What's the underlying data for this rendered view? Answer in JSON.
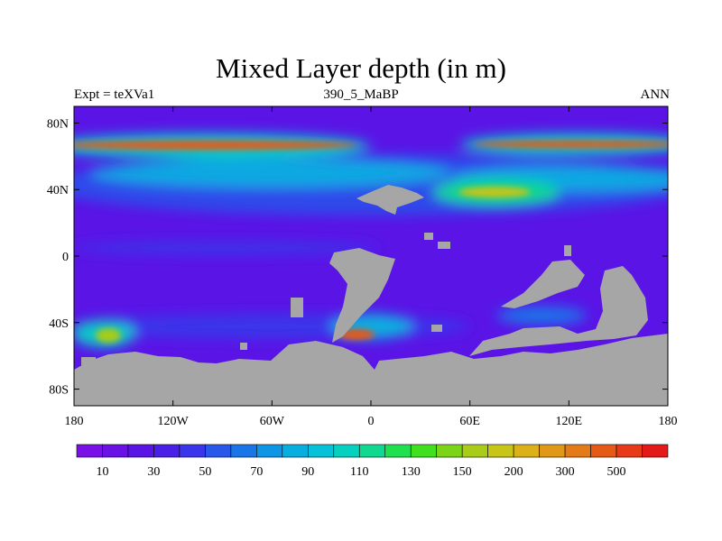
{
  "title": "Mixed Layer depth (in m)",
  "subtitle_left": "Expt = teXVa1",
  "subtitle_center": "390_5_MaBP",
  "subtitle_right": "ANN",
  "chart_data": {
    "type": "heatmap",
    "x_axis": {
      "ticks": [
        -180,
        -120,
        -60,
        0,
        60,
        120,
        180
      ],
      "labels": [
        "180",
        "120W",
        "60W",
        "0",
        "60E",
        "120E",
        "180"
      ]
    },
    "y_axis": {
      "ticks": [
        80,
        40,
        0,
        -40,
        -80
      ],
      "labels": [
        "80N",
        "40N",
        "0",
        "40S",
        "80S"
      ]
    },
    "xlim": [
      -180,
      180
    ],
    "ylim": [
      -90,
      90
    ],
    "land_color": "#a6a6a6",
    "ocean_base_color": "#5a14e6",
    "features": [
      {
        "name": "arctic-band",
        "lat": 67,
        "lon_range": [
          -180,
          180
        ],
        "level": 500
      },
      {
        "name": "north-mid-band",
        "lat": 52,
        "lon_range": [
          -180,
          180
        ],
        "level": 90
      },
      {
        "name": "north-pacific-max",
        "lat": 40,
        "lon": 75,
        "level": 150
      },
      {
        "name": "south-atlantic-max",
        "lat": -47,
        "lon": -5,
        "level": 300
      },
      {
        "name": "south-pacific-max",
        "lat": -47,
        "lon": -165,
        "level": 150
      }
    ],
    "colorbar": {
      "colors": [
        "#7a10e6",
        "#6a12e6",
        "#5a14e6",
        "#4a20e8",
        "#3a35ea",
        "#2858ea",
        "#1a75e8",
        "#0e95e5",
        "#08aee0",
        "#06c2d8",
        "#06d0c0",
        "#10d890",
        "#20e050",
        "#40e020",
        "#7cd418",
        "#a8cc18",
        "#c8c418",
        "#dcb018",
        "#e09818",
        "#e47a18",
        "#e65a18",
        "#e63a18",
        "#e41a18"
      ],
      "labels": [
        "10",
        "30",
        "50",
        "70",
        "90",
        "110",
        "130",
        "150",
        "200",
        "300",
        "500"
      ]
    }
  }
}
